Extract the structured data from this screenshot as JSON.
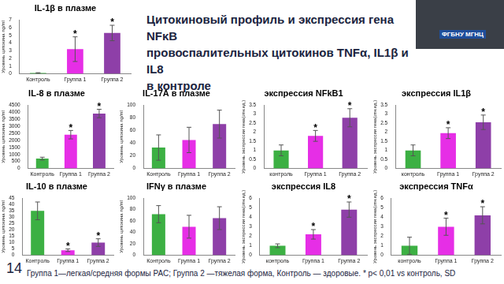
{
  "title_lines": [
    "Цитокиновый профиль и  экспрессия гена NFκB",
    "провоспалительных цитокинов TNFα, IL1β и IL8",
    "в контроле"
  ],
  "overlay": "ФГБНУ МГНЦ",
  "footer": "Группа 1—легкая/средняя формы РАС; Группа 2 —тяжелая форма, Контроль — здоровые. * p< 0,01 vs контроль, SD",
  "slide_number": 14,
  "chart_data": [
    {
      "type": "bar",
      "title": "IL-1β в плазме",
      "ylabel": "Уровень цитокина ng/ml",
      "categories": [
        "Контроль",
        "Группа 1",
        "Группа 2"
      ],
      "values": [
        0.1,
        3.2,
        5.3
      ],
      "errors": [
        0.05,
        1.6,
        1.0
      ],
      "colors": [
        "#3cb043",
        "#e62ee6",
        "#8e3fa8"
      ],
      "ylim": [
        0,
        7
      ],
      "yticks": [
        0,
        1,
        2,
        3,
        4,
        5,
        6,
        7
      ],
      "grid": false,
      "annotations": [
        {
          "category": "Группа 1",
          "text": "*"
        },
        {
          "category": "Группа 2",
          "text": "*"
        }
      ]
    },
    {
      "type": "bar",
      "title": "IL-8 в плазме",
      "ylabel": "Уровень цитокина ng/ml",
      "categories": [
        "Контроль",
        "Группа 1",
        "Группа 2"
      ],
      "values": [
        700,
        2400,
        3900
      ],
      "errors": [
        100,
        300,
        300
      ],
      "colors": [
        "#3cb043",
        "#e62ee6",
        "#8e3fa8"
      ],
      "ylim": [
        0,
        4500
      ],
      "yticks": [
        0,
        500,
        1000,
        1500,
        2000,
        2500,
        3000,
        3500,
        4000,
        4500
      ],
      "grid": false,
      "annotations": [
        {
          "category": "Группа 1",
          "text": "*"
        },
        {
          "category": "Группа 2",
          "text": "*"
        }
      ]
    },
    {
      "type": "bar",
      "title": "IL-17A в плазме",
      "ylabel": "Уровень цитокина ng/ml",
      "categories": [
        "Контроль",
        "Группа 1",
        "Группа 2"
      ],
      "values": [
        33,
        45,
        70
      ],
      "errors": [
        20,
        20,
        22
      ],
      "colors": [
        "#3cb043",
        "#e62ee6",
        "#8e3fa8"
      ],
      "ylim": [
        0,
        100
      ],
      "yticks": [
        0,
        20,
        40,
        60,
        80,
        100
      ],
      "grid": false,
      "annotations": []
    },
    {
      "type": "bar",
      "title": "экспрессия NFkB1",
      "ylabel": "Уровень экспрессии гена(отн.ед.)",
      "categories": [
        "контроль",
        "Группа 1",
        "Группа 2"
      ],
      "values": [
        1.0,
        1.8,
        2.8
      ],
      "errors": [
        0.3,
        0.3,
        0.5
      ],
      "colors": [
        "#3cb043",
        "#e62ee6",
        "#8e3fa8"
      ],
      "ylim": [
        0,
        3.5
      ],
      "yticks": [
        0,
        0.5,
        1,
        1.5,
        2,
        2.5,
        3,
        3.5
      ],
      "grid": false,
      "annotations": [
        {
          "category": "Группа 1",
          "text": "*"
        },
        {
          "category": "Группа 2",
          "text": "*"
        }
      ]
    },
    {
      "type": "bar",
      "title": "экспрессия IL1β",
      "ylabel": "Уровень экспрессии гена(отн.ед.)",
      "categories": [
        "контроль",
        "Группа 1",
        "Группа 2"
      ],
      "values": [
        1.0,
        1.95,
        2.55
      ],
      "errors": [
        0.3,
        0.3,
        0.4
      ],
      "colors": [
        "#3cb043",
        "#e62ee6",
        "#8e3fa8"
      ],
      "ylim": [
        0,
        3.5
      ],
      "yticks": [
        0,
        0.5,
        1,
        1.5,
        2,
        2.5,
        3,
        3.5
      ],
      "grid": false,
      "annotations": [
        {
          "category": "Группа 1",
          "text": "*"
        },
        {
          "category": "Группа 2",
          "text": "*"
        }
      ]
    },
    {
      "type": "bar",
      "title": "IL-10 в плазме",
      "ylabel": "Уровень цитокина ng/ml",
      "categories": [
        "Контроль",
        "Группа 1",
        "Группа 2"
      ],
      "values": [
        35,
        4,
        10
      ],
      "errors": [
        7,
        1,
        3
      ],
      "colors": [
        "#3cb043",
        "#e62ee6",
        "#8e3fa8"
      ],
      "ylim": [
        0,
        45
      ],
      "yticks": [
        0,
        5,
        10,
        15,
        20,
        25,
        30,
        35,
        40,
        45
      ],
      "grid": false,
      "annotations": [
        {
          "category": "Группа 1",
          "text": "*"
        },
        {
          "category": "Группа 2",
          "text": "*"
        }
      ]
    },
    {
      "type": "bar",
      "title": "IFNγ в плазме",
      "ylabel": "Уровень цитокина ng/ml",
      "categories": [
        "Контроль",
        "Группа 1",
        "Группа 2"
      ],
      "values": [
        72,
        50,
        65
      ],
      "errors": [
        15,
        20,
        20
      ],
      "colors": [
        "#3cb043",
        "#e62ee6",
        "#8e3fa8"
      ],
      "ylim": [
        0,
        100
      ],
      "yticks": [
        0,
        20,
        40,
        60,
        80,
        100
      ],
      "grid": false,
      "annotations": []
    },
    {
      "type": "bar",
      "title": "экспрессия IL8",
      "ylabel": "Уровень экспрессии гена(отн.ед.)",
      "categories": [
        "контроль",
        "Группа 1",
        "Группа 2"
      ],
      "values": [
        1.0,
        2.2,
        4.8
      ],
      "errors": [
        0.2,
        0.5,
        0.8
      ],
      "colors": [
        "#3cb043",
        "#e62ee6",
        "#8e3fa8"
      ],
      "ylim": [
        0,
        6
      ],
      "yticks": [
        0,
        1,
        2,
        3,
        4,
        5,
        6
      ],
      "grid": false,
      "annotations": [
        {
          "category": "Группа 1",
          "text": "*"
        },
        {
          "category": "Группа 2",
          "text": "*"
        }
      ]
    },
    {
      "type": "bar",
      "title": "экспрессия TNFα",
      "ylabel": "Уровень экспрессии гена(отн.ед.)",
      "categories": [
        "контроль",
        "Группа 1",
        "Группа 2"
      ],
      "values": [
        1.0,
        3.0,
        4.2
      ],
      "errors": [
        0.9,
        0.9,
        0.9
      ],
      "colors": [
        "#3cb043",
        "#e62ee6",
        "#8e3fa8"
      ],
      "ylim": [
        0,
        6
      ],
      "yticks": [
        0,
        1,
        2,
        3,
        4,
        5,
        6
      ],
      "grid": false,
      "annotations": [
        {
          "category": "Группа 1",
          "text": "*"
        },
        {
          "category": "Группа 2",
          "text": "*"
        }
      ]
    }
  ]
}
